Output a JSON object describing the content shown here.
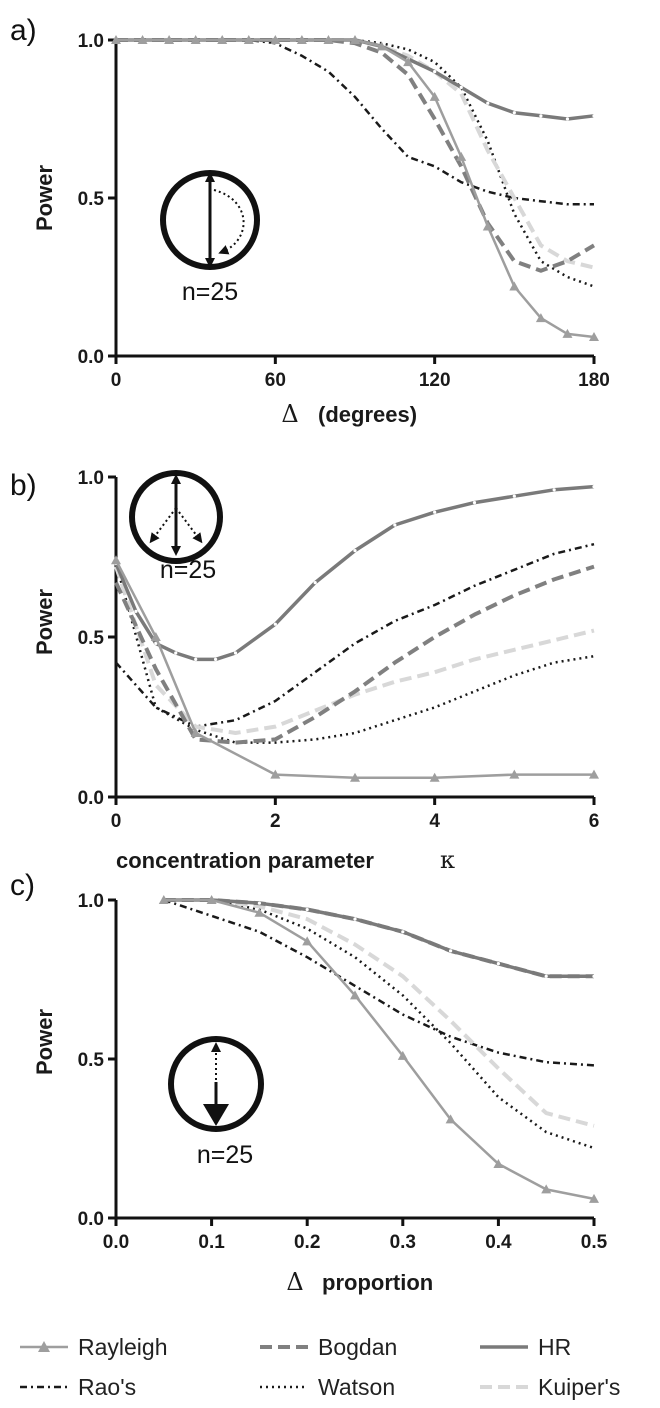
{
  "chart_data": [
    {
      "panel": "a)",
      "type": "line",
      "xlabel_symbol": "Δ",
      "xlabel": "(degrees)",
      "ylabel": "Power",
      "xlim": [
        0,
        180
      ],
      "ylim": [
        0,
        1
      ],
      "xticks": [
        "0",
        "60",
        "120",
        "180"
      ],
      "xtick_values": [
        0,
        60,
        120,
        180
      ],
      "yticks": [
        "0.0",
        "0.5",
        "1.0"
      ],
      "ytick_values": [
        0,
        0.5,
        1
      ],
      "inset_label": "n=25",
      "series": [
        {
          "key": "rao",
          "x": [
            0,
            10,
            20,
            30,
            40,
            50,
            60,
            70,
            80,
            90,
            100,
            110,
            120,
            130,
            140,
            150,
            160,
            170,
            180
          ],
          "y": [
            1.0,
            1.0,
            1.0,
            1.0,
            1.0,
            1.0,
            0.99,
            0.95,
            0.9,
            0.82,
            0.72,
            0.63,
            0.6,
            0.55,
            0.52,
            0.5,
            0.49,
            0.48,
            0.48
          ]
        },
        {
          "key": "watson",
          "x": [
            0,
            10,
            20,
            30,
            40,
            50,
            60,
            70,
            80,
            90,
            100,
            110,
            120,
            130,
            140,
            150,
            160,
            170,
            180
          ],
          "y": [
            1.0,
            1.0,
            1.0,
            1.0,
            1.0,
            1.0,
            1.0,
            1.0,
            1.0,
            1.0,
            0.99,
            0.97,
            0.93,
            0.85,
            0.68,
            0.45,
            0.3,
            0.25,
            0.22
          ]
        },
        {
          "key": "kuiper",
          "x": [
            0,
            10,
            20,
            30,
            40,
            50,
            60,
            70,
            80,
            90,
            100,
            110,
            120,
            130,
            140,
            150,
            160,
            170,
            180
          ],
          "y": [
            1.0,
            1.0,
            1.0,
            1.0,
            1.0,
            1.0,
            1.0,
            1.0,
            1.0,
            1.0,
            0.98,
            0.95,
            0.9,
            0.83,
            0.65,
            0.5,
            0.35,
            0.3,
            0.28
          ]
        },
        {
          "key": "bogdan",
          "x": [
            0,
            10,
            20,
            30,
            40,
            50,
            60,
            70,
            80,
            90,
            100,
            110,
            120,
            130,
            140,
            150,
            160,
            170,
            180
          ],
          "y": [
            1.0,
            1.0,
            1.0,
            1.0,
            1.0,
            1.0,
            1.0,
            1.0,
            1.0,
            0.99,
            0.96,
            0.89,
            0.75,
            0.6,
            0.42,
            0.3,
            0.27,
            0.3,
            0.35
          ]
        },
        {
          "key": "hr",
          "x": [
            0,
            10,
            20,
            30,
            40,
            50,
            60,
            70,
            80,
            90,
            100,
            110,
            120,
            130,
            140,
            150,
            160,
            170,
            180
          ],
          "y": [
            1.0,
            1.0,
            1.0,
            1.0,
            1.0,
            1.0,
            1.0,
            1.0,
            1.0,
            1.0,
            0.98,
            0.94,
            0.9,
            0.85,
            0.8,
            0.77,
            0.76,
            0.75,
            0.76
          ]
        },
        {
          "key": "rayleigh",
          "x": [
            0,
            10,
            20,
            30,
            40,
            50,
            60,
            70,
            80,
            90,
            100,
            110,
            120,
            130,
            140,
            150,
            160,
            170,
            180
          ],
          "y": [
            1.0,
            1.0,
            1.0,
            1.0,
            1.0,
            1.0,
            1.0,
            1.0,
            1.0,
            1.0,
            0.98,
            0.93,
            0.82,
            0.63,
            0.41,
            0.22,
            0.12,
            0.07,
            0.06
          ]
        }
      ]
    },
    {
      "panel": "b)",
      "type": "line",
      "xlabel": "concentration parameter",
      "xlabel_symbol": "κ",
      "ylabel": "Power",
      "xlim": [
        0,
        6
      ],
      "ylim": [
        0,
        1
      ],
      "xticks": [
        "0",
        "2",
        "4",
        "6"
      ],
      "xtick_values": [
        0,
        2,
        4,
        6
      ],
      "yticks": [
        "0.0",
        "0.5",
        "1.0"
      ],
      "ytick_values": [
        0,
        0.5,
        1
      ],
      "inset_label": "n=25",
      "series": [
        {
          "key": "rao",
          "x": [
            0,
            0.5,
            1,
            1.5,
            2,
            2.5,
            3,
            3.5,
            4,
            4.5,
            5,
            5.5,
            6
          ],
          "y": [
            0.42,
            0.28,
            0.22,
            0.24,
            0.3,
            0.39,
            0.48,
            0.55,
            0.6,
            0.66,
            0.71,
            0.76,
            0.79
          ]
        },
        {
          "key": "watson",
          "x": [
            0,
            0.5,
            1,
            1.5,
            2,
            2.5,
            3,
            3.5,
            4,
            4.5,
            5,
            5.5,
            6
          ],
          "y": [
            0.73,
            0.28,
            0.21,
            0.17,
            0.17,
            0.18,
            0.2,
            0.24,
            0.28,
            0.33,
            0.38,
            0.42,
            0.44
          ]
        },
        {
          "key": "kuiper",
          "x": [
            0,
            0.5,
            1,
            1.5,
            2,
            2.5,
            3,
            3.5,
            4,
            4.5,
            5,
            5.5,
            6
          ],
          "y": [
            0.72,
            0.35,
            0.22,
            0.2,
            0.22,
            0.27,
            0.32,
            0.36,
            0.39,
            0.43,
            0.46,
            0.49,
            0.52
          ]
        },
        {
          "key": "bogdan",
          "x": [
            0,
            0.5,
            1,
            1.5,
            2,
            2.5,
            3,
            3.5,
            4,
            4.5,
            5,
            5.5,
            6
          ],
          "y": [
            0.67,
            0.4,
            0.18,
            0.17,
            0.18,
            0.25,
            0.33,
            0.42,
            0.5,
            0.57,
            0.63,
            0.68,
            0.72
          ]
        },
        {
          "key": "hr",
          "x": [
            0,
            0.25,
            0.5,
            0.75,
            1,
            1.25,
            1.5,
            2,
            2.5,
            3,
            3.5,
            4,
            4.5,
            5,
            5.5,
            6
          ],
          "y": [
            0.73,
            0.58,
            0.48,
            0.45,
            0.43,
            0.43,
            0.45,
            0.54,
            0.67,
            0.77,
            0.85,
            0.89,
            0.92,
            0.94,
            0.96,
            0.97
          ]
        },
        {
          "key": "rayleigh",
          "x": [
            0,
            0.5,
            1,
            2,
            3,
            4,
            5,
            6
          ],
          "y": [
            0.74,
            0.5,
            0.2,
            0.07,
            0.06,
            0.06,
            0.07,
            0.07
          ]
        }
      ]
    },
    {
      "panel": "c)",
      "type": "line",
      "xlabel_symbol": "Δ",
      "xlabel": "proportion",
      "ylabel": "Power",
      "xlim": [
        0,
        0.5
      ],
      "ylim": [
        0,
        1
      ],
      "xticks": [
        "0.0",
        "0.1",
        "0.2",
        "0.3",
        "0.4",
        "0.5"
      ],
      "xtick_values": [
        0,
        0.1,
        0.2,
        0.3,
        0.4,
        0.5
      ],
      "yticks": [
        "0.0",
        "0.5",
        "1.0"
      ],
      "ytick_values": [
        0,
        0.5,
        1
      ],
      "inset_label": "n=25",
      "series": [
        {
          "key": "rao",
          "x": [
            0.05,
            0.1,
            0.15,
            0.2,
            0.25,
            0.3,
            0.35,
            0.4,
            0.45,
            0.5
          ],
          "y": [
            1.0,
            0.95,
            0.9,
            0.82,
            0.73,
            0.64,
            0.57,
            0.52,
            0.49,
            0.48
          ]
        },
        {
          "key": "watson",
          "x": [
            0.05,
            0.1,
            0.15,
            0.2,
            0.25,
            0.3,
            0.35,
            0.4,
            0.45,
            0.5
          ],
          "y": [
            1.0,
            1.0,
            0.97,
            0.91,
            0.82,
            0.7,
            0.55,
            0.38,
            0.27,
            0.22
          ]
        },
        {
          "key": "kuiper",
          "x": [
            0.05,
            0.1,
            0.15,
            0.2,
            0.25,
            0.3,
            0.35,
            0.4,
            0.45,
            0.5
          ],
          "y": [
            1.0,
            1.0,
            0.98,
            0.94,
            0.86,
            0.76,
            0.62,
            0.47,
            0.33,
            0.29
          ]
        },
        {
          "key": "bogdan",
          "x": [
            0.05,
            0.1,
            0.15,
            0.2,
            0.25,
            0.3,
            0.35,
            0.4,
            0.45,
            0.5
          ],
          "y": [
            1.0,
            1.0,
            0.99,
            0.97,
            0.94,
            0.9,
            0.84,
            0.8,
            0.76,
            0.76
          ]
        },
        {
          "key": "hr",
          "x": [
            0.05,
            0.1,
            0.15,
            0.2,
            0.25,
            0.3,
            0.35,
            0.4,
            0.45,
            0.5
          ],
          "y": [
            1.0,
            1.0,
            0.99,
            0.97,
            0.94,
            0.9,
            0.84,
            0.8,
            0.76,
            0.76
          ]
        },
        {
          "key": "rayleigh",
          "x": [
            0.05,
            0.1,
            0.15,
            0.2,
            0.25,
            0.3,
            0.35,
            0.4,
            0.45,
            0.5
          ],
          "y": [
            1.0,
            1.0,
            0.96,
            0.87,
            0.7,
            0.51,
            0.31,
            0.17,
            0.09,
            0.06
          ]
        }
      ]
    }
  ],
  "legend": [
    {
      "key": "rayleigh",
      "label": "Rayleigh"
    },
    {
      "key": "bogdan",
      "label": "Bogdan"
    },
    {
      "key": "hr",
      "label": "HR"
    },
    {
      "key": "rao",
      "label": "Rao's"
    },
    {
      "key": "watson",
      "label": "Watson"
    },
    {
      "key": "kuiper",
      "label": "Kuiper's"
    }
  ],
  "series_styles": {
    "rayleigh": {
      "color": "#9e9e9e",
      "marker": "triangle"
    },
    "bogdan": {
      "color": "#808080",
      "dash": "dashed"
    },
    "hr": {
      "color": "#7a7a7a",
      "marker": "dot"
    },
    "rao": {
      "color": "#1a1a1a",
      "dash": "dash-dot"
    },
    "watson": {
      "color": "#1a1a1a",
      "dash": "dotted"
    },
    "kuiper": {
      "color": "#d8d8d8",
      "dash": "dashed"
    }
  }
}
